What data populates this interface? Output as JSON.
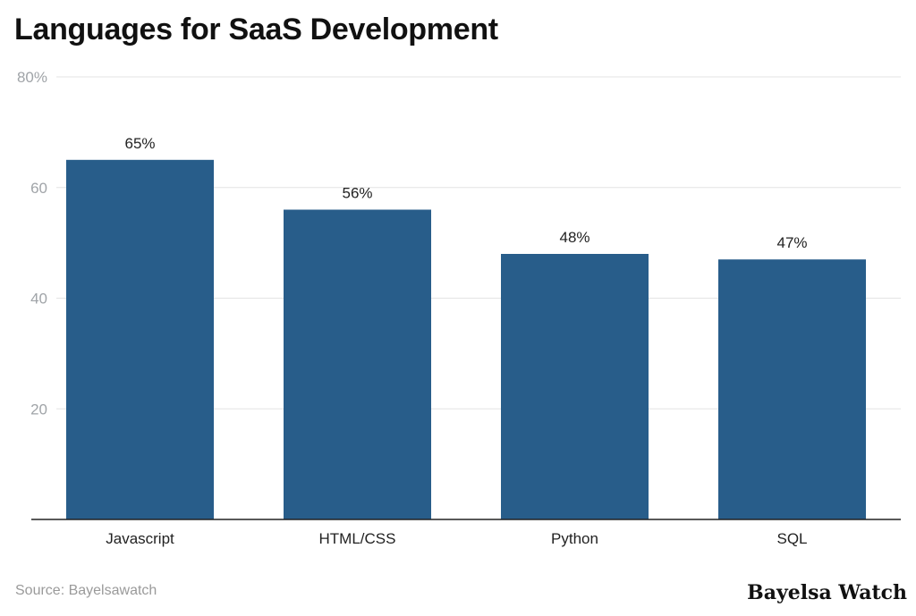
{
  "chart_data": {
    "type": "bar",
    "title": "Languages for SaaS Development",
    "categories": [
      "Javascript",
      "HTML/CSS",
      "Python",
      "SQL"
    ],
    "values": [
      65,
      56,
      48,
      47
    ],
    "data_labels": [
      "65%",
      "56%",
      "48%",
      "47%"
    ],
    "ylim": [
      0,
      80
    ],
    "yticks": [
      20,
      40,
      60,
      80
    ],
    "ytick_labels": [
      "20",
      "40",
      "60",
      "80%"
    ],
    "grid": true,
    "xlabel": "",
    "ylabel": "",
    "bar_color": "#285d8a"
  },
  "source": "Source: Bayelsawatch",
  "logo": "Bayelsa Watch"
}
